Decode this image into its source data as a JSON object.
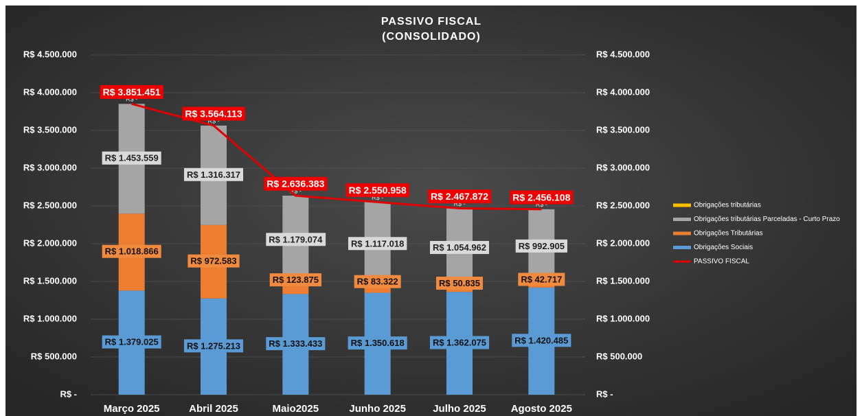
{
  "chart_data": {
    "type": "bar",
    "stacked": true,
    "title": "PASSIVO FISCAL",
    "subtitle": "(CONSOLIDADO)",
    "categories": [
      "Março 2025",
      "Abril 2025",
      "Maio2025",
      "Junho 2025",
      "Julho 2025",
      "Agosto 2025"
    ],
    "series": [
      {
        "name": "Obrigações Sociais",
        "color": "#5b9bd5",
        "values": [
          1379025,
          1275213,
          1333433,
          1350618,
          1362075,
          1420485
        ],
        "value_labels": [
          "R$ 1.379.025",
          "R$ 1.275.213",
          "R$ 1.333.433",
          "R$ 1.350.618",
          "R$ 1.362.075",
          "R$ 1.420.485"
        ]
      },
      {
        "name": "Obrigações Tributárias",
        "color": "#ed7d31",
        "values": [
          1018866,
          972583,
          123875,
          83322,
          50835,
          42717
        ],
        "value_labels": [
          "R$ 1.018.866",
          "R$ 972.583",
          "R$ 123.875",
          "R$ 83.322",
          "R$ 50.835",
          "R$ 42.717"
        ]
      },
      {
        "name": "Obrigações tributárias Parceladas - Curto Prazo",
        "color": "#a5a5a5",
        "values": [
          1453559,
          1316317,
          1179074,
          1117018,
          1054962,
          992905
        ],
        "value_labels": [
          "R$ 1.453.559",
          "R$ 1.316.317",
          "R$ 1.179.074",
          "R$ 1.117.018",
          "R$ 1.054.962",
          "R$ 992.905"
        ]
      },
      {
        "name": "Obrigações tributárias",
        "color": "#ffc000",
        "values": [
          0,
          0,
          0,
          0,
          0,
          0
        ],
        "value_labels": [
          "R$ -",
          "R$ -",
          "R$ -",
          "R$ -",
          "R$ -",
          "R$ -"
        ]
      },
      {
        "name": "PASSIVO FISCAL",
        "color": "#e00000",
        "type": "line",
        "axis": "y2",
        "values": [
          3851451,
          3564113,
          2636383,
          2550958,
          2467872,
          2456108
        ],
        "value_labels": [
          "R$ 3.851.451",
          "R$ 3.564.113",
          "R$ 2.636.383",
          "R$ 2.550.958",
          "R$ 2.467.872",
          "R$ 2.456.108"
        ]
      }
    ],
    "ylim": [
      0,
      4500000
    ],
    "yticks": [
      {
        "value": 0,
        "label": "R$ -"
      },
      {
        "value": 500000,
        "label": "R$ 500.000"
      },
      {
        "value": 1000000,
        "label": "R$ 1.000.000"
      },
      {
        "value": 1500000,
        "label": "R$ 1.500.000"
      },
      {
        "value": 2000000,
        "label": "R$ 2.000.000"
      },
      {
        "value": 2500000,
        "label": "R$ 2.500.000"
      },
      {
        "value": 3000000,
        "label": "R$ 3.000.000"
      },
      {
        "value": 3500000,
        "label": "R$ 3.500.000"
      },
      {
        "value": 4000000,
        "label": "R$ 4.000.000"
      },
      {
        "value": 4500000,
        "label": "R$ 4.500.000"
      }
    ],
    "y2lim": [
      0,
      4500000
    ],
    "y2ticks": [
      {
        "value": 0,
        "label": "R$ -"
      },
      {
        "value": 500000,
        "label": "R$ 500.000"
      },
      {
        "value": 1000000,
        "label": "R$ 1.000.000"
      },
      {
        "value": 1500000,
        "label": "R$ 1.500.000"
      },
      {
        "value": 2000000,
        "label": "R$ 2.000.000"
      },
      {
        "value": 2500000,
        "label": "R$ 2.500.000"
      },
      {
        "value": 3000000,
        "label": "R$ 3.000.000"
      },
      {
        "value": 3500000,
        "label": "R$ 3.500.000"
      },
      {
        "value": 4000000,
        "label": "R$ 4.000.000"
      },
      {
        "value": 4500000,
        "label": "R$ 4.500.000"
      }
    ],
    "grid": true,
    "legend": "right"
  }
}
